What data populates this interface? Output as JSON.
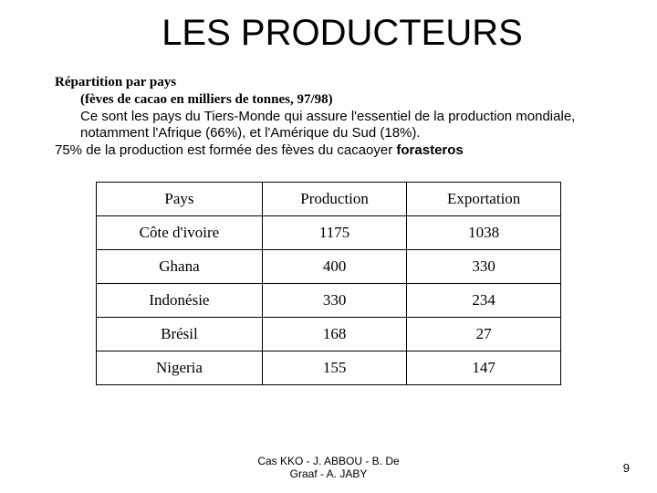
{
  "title": "LES PRODUCTEURS",
  "body": {
    "line1": "Répartition par pays",
    "line2": "(fèves de cacao en milliers de tonnes, 97/98)",
    "line3": " Ce sont les pays du Tiers-Monde qui assure l'essentiel de la production mondiale, notamment l'Afrique (66%), et l'Amérique du Sud (18%).",
    "line4a": "75% de la production est formée des fèves du cacaoyer ",
    "line4b": "forasteros"
  },
  "table": {
    "columns": [
      "Pays",
      "Production",
      "Exportation"
    ],
    "rows": [
      [
        "Côte d'ivoire",
        "1175",
        "1038"
      ],
      [
        "Ghana",
        "400",
        "330"
      ],
      [
        "Indonésie",
        "330",
        "234"
      ],
      [
        "Brésil",
        "168",
        "27"
      ],
      [
        "Nigeria",
        "155",
        "147"
      ]
    ],
    "border_color": "#000000",
    "background_color": "#ffffff",
    "font_family": "Times New Roman",
    "cell_fontsize": 17
  },
  "footer": "Cas KKO - J. ABBOU -  B. De Graaf - A. JABY",
  "page_number": "9",
  "colors": {
    "background": "#ffffff",
    "text": "#000000"
  }
}
